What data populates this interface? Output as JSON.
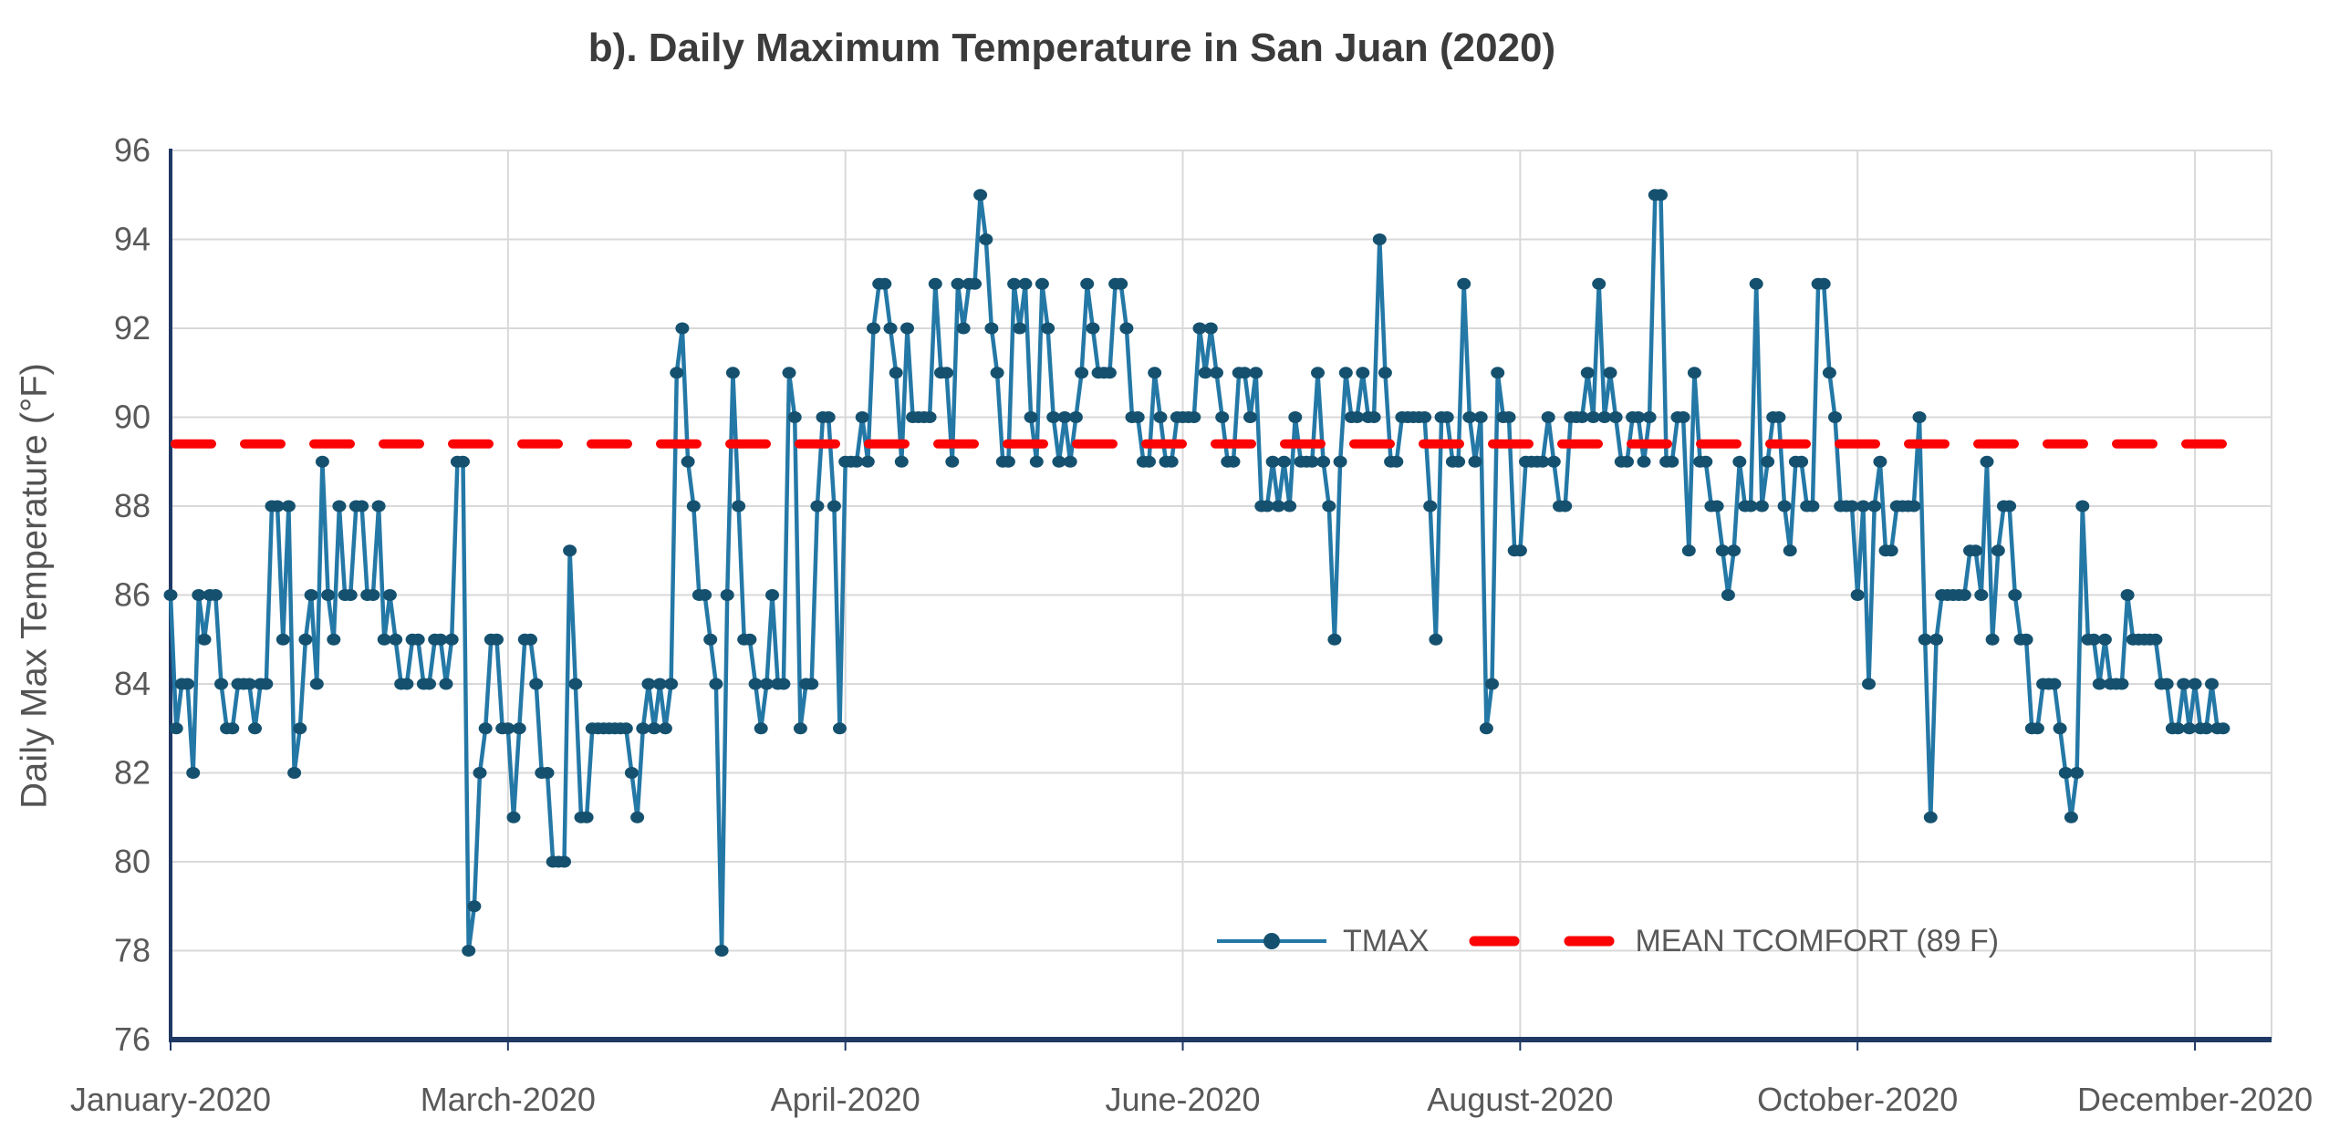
{
  "title": "b). Daily Maximum Temperature in San Juan (2020)",
  "y_axis": {
    "title": "Daily Max Temperature (°F)",
    "min": 76,
    "max": 96,
    "step": 2
  },
  "x_axis": {
    "tick_labels": [
      "January-2020",
      "March-2020",
      "April-2020",
      "June-2020",
      "August-2020",
      "October-2020",
      "December-2020"
    ],
    "tick_days": [
      1,
      61,
      121,
      181,
      241,
      301,
      361
    ]
  },
  "legend": {
    "tmax_label": "TMAX",
    "mean_label": "MEAN TCOMFORT (89 F)"
  },
  "colors": {
    "tmax_line": "#2478a6",
    "tmax_marker": "#15516f",
    "mean_line": "#fb0304",
    "grid": "#d9d9d9",
    "axis": "#1f3864",
    "tick_text": "#595959",
    "title_text": "#3b3b3b"
  },
  "chart_data": {
    "type": "line",
    "title": "b). Daily Maximum Temperature in San Juan (2020)",
    "xlabel": "",
    "ylabel": "Daily Max Temperature (°F)",
    "ylim": [
      76,
      96
    ],
    "grid": "horizontal-and-monthly-vertical",
    "legend_position": "bottom-center-inside",
    "x_tick_labels": [
      "January-2020",
      "March-2020",
      "April-2020",
      "June-2020",
      "August-2020",
      "October-2020",
      "December-2020"
    ],
    "x_tick_days_of_year": [
      1,
      61,
      121,
      181,
      241,
      301,
      361
    ],
    "mean_line": {
      "name": "MEAN TCOMFORT (89 F)",
      "value": 89.4,
      "style": "dashed"
    },
    "series": [
      {
        "name": "TMAX",
        "unit": "F",
        "year": 2020,
        "daily_values_by_month": {
          "January": [
            86,
            83,
            84,
            84,
            82,
            86,
            85,
            86,
            86,
            84,
            83,
            83,
            84,
            84,
            84,
            83,
            84,
            84,
            88,
            88,
            85,
            88,
            82,
            83,
            85,
            86,
            84,
            89,
            86,
            85,
            88
          ],
          "February": [
            86,
            86,
            88,
            88,
            86,
            86,
            88,
            85,
            86,
            85,
            84,
            84,
            85,
            85,
            84,
            84,
            85,
            85,
            84,
            85,
            89,
            89,
            78,
            79,
            82,
            83,
            85,
            85,
            83
          ],
          "March": [
            83,
            81,
            83,
            85,
            85,
            84,
            82,
            82,
            80,
            80,
            80,
            87,
            84,
            81,
            81,
            83,
            83,
            83,
            83,
            83,
            83,
            83,
            82,
            81,
            83,
            84,
            83,
            84,
            83,
            84,
            91
          ],
          "April": [
            92,
            89,
            88,
            86,
            86,
            85,
            84,
            78,
            86,
            91,
            88,
            85,
            85,
            84,
            83,
            84,
            86,
            84,
            84,
            91,
            90,
            83,
            84,
            84,
            88,
            90,
            90,
            88,
            83,
            89
          ],
          "May": [
            89,
            89,
            90,
            89,
            92,
            93,
            93,
            92,
            91,
            89,
            92,
            90,
            90,
            90,
            90,
            93,
            91,
            91,
            89,
            93,
            92,
            93,
            93,
            95,
            94,
            92,
            91,
            89,
            89,
            93,
            92
          ],
          "June": [
            93,
            90,
            89,
            93,
            92,
            90,
            89,
            90,
            89,
            90,
            91,
            93,
            92,
            91,
            91,
            91,
            93,
            93,
            92,
            90,
            90,
            89,
            89,
            91,
            90,
            89,
            89,
            90,
            90,
            90
          ],
          "July": [
            90,
            92,
            91,
            92,
            91,
            90,
            89,
            89,
            91,
            91,
            90,
            91,
            88,
            88,
            89,
            88,
            89,
            88,
            90,
            89,
            89,
            89,
            91,
            89,
            88,
            85,
            89,
            91,
            90,
            90,
            91
          ],
          "August": [
            90,
            90,
            94,
            91,
            89,
            89,
            90,
            90,
            90,
            90,
            90,
            88,
            85,
            90,
            90,
            89,
            89,
            93,
            90,
            89,
            90,
            83,
            84,
            91,
            90,
            90,
            87,
            87,
            89,
            89,
            89
          ],
          "September": [
            89,
            90,
            89,
            88,
            88,
            90,
            90,
            90,
            91,
            90,
            93,
            90,
            91,
            90,
            89,
            89,
            90,
            90,
            89,
            90,
            95,
            95,
            89,
            89,
            90,
            90,
            87,
            91,
            89,
            89
          ],
          "October": [
            88,
            88,
            87,
            86,
            87,
            89,
            88,
            88,
            93,
            88,
            89,
            90,
            90,
            88,
            87,
            89,
            89,
            88,
            88,
            93,
            93,
            91,
            90,
            88,
            88,
            88,
            86,
            88,
            84,
            88,
            89
          ],
          "November": [
            87,
            87,
            88,
            88,
            88,
            88,
            90,
            85,
            81,
            85,
            86,
            86,
            86,
            86,
            86,
            87,
            87,
            86,
            89,
            85,
            87,
            88,
            88,
            86,
            85,
            85,
            83,
            83,
            84,
            84
          ],
          "December": [
            84,
            83,
            82,
            81,
            82,
            88,
            85,
            85,
            84,
            85,
            84,
            84,
            84,
            86,
            85,
            85,
            85,
            85,
            85,
            84,
            84,
            83,
            83,
            84,
            83,
            84,
            83,
            83,
            84,
            83,
            83
          ]
        }
      }
    ]
  }
}
